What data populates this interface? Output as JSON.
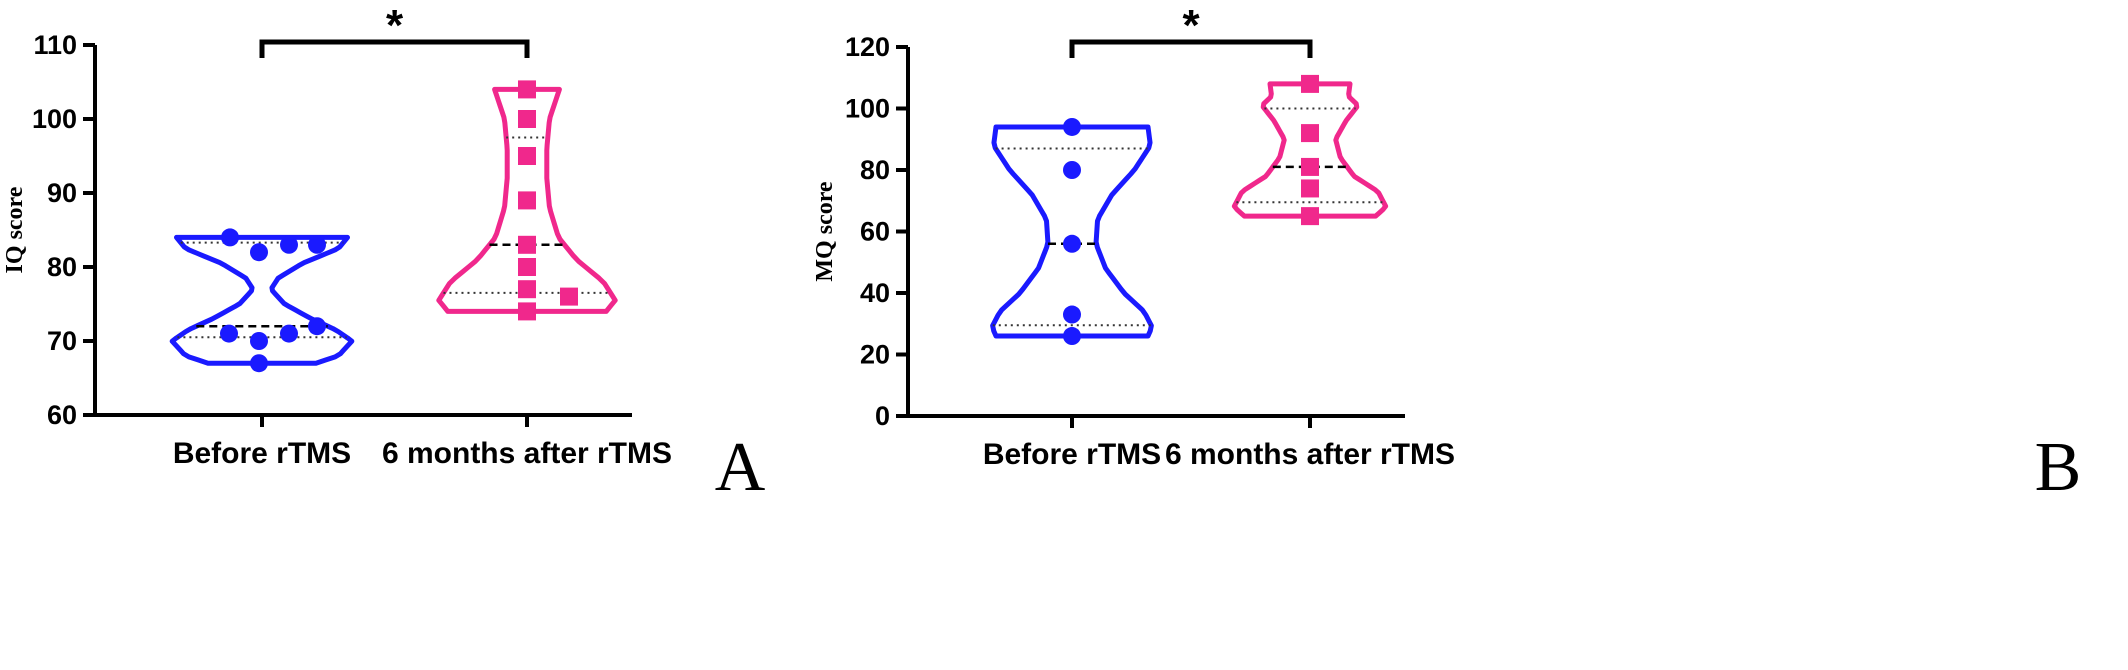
{
  "chart_data": [
    {
      "type": "violin",
      "panel_label": "A",
      "ylabel": "IQ score",
      "ylim": [
        60,
        110
      ],
      "yticks": [
        60,
        70,
        80,
        90,
        100,
        110
      ],
      "categories": [
        "Before rTMS",
        "6 months after rTMS"
      ],
      "significance": "*",
      "series": [
        {
          "category": "Before rTMS",
          "color": "#1a1aff",
          "marker": "circle",
          "points": [
            84,
            83,
            83,
            82,
            72,
            71,
            71,
            70,
            67
          ],
          "median": 72,
          "quartiles": [
            70.5,
            83.3
          ],
          "range": [
            67,
            84
          ]
        },
        {
          "category": "6 months after rTMS",
          "color": "#f0288c",
          "marker": "square",
          "points": [
            104,
            100,
            95,
            89,
            83,
            80,
            77,
            76,
            74
          ],
          "median": 83,
          "quartiles": [
            76.5,
            97.5
          ],
          "range": [
            74,
            104
          ]
        }
      ]
    },
    {
      "type": "violin",
      "panel_label": "B",
      "ylabel": "MQ score",
      "ylim": [
        0,
        120
      ],
      "yticks": [
        0,
        20,
        40,
        60,
        80,
        100,
        120
      ],
      "categories": [
        "Before rTMS",
        "6 months after rTMS"
      ],
      "significance": "*",
      "series": [
        {
          "category": "Before rTMS",
          "color": "#1a1aff",
          "marker": "circle",
          "points": [
            94,
            80,
            56,
            33,
            26
          ],
          "median": 56,
          "quartiles": [
            29.5,
            87
          ],
          "range": [
            26,
            94
          ]
        },
        {
          "category": "6 months after rTMS",
          "color": "#f0288c",
          "marker": "square",
          "points": [
            108,
            92,
            81,
            74,
            65
          ],
          "median": 81,
          "quartiles": [
            69.5,
            100
          ],
          "range": [
            65,
            108
          ]
        }
      ]
    }
  ]
}
